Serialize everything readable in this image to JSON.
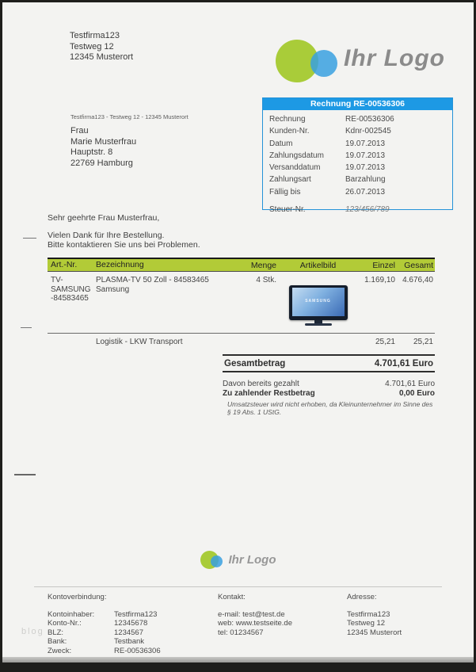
{
  "colors": {
    "accent_blue": "#1d99e4",
    "table_green": "#b2cb37",
    "logo_green": "#a9cc39",
    "logo_blue": "#38a0e0",
    "page_bg": "#f3f3f1"
  },
  "sender_top": {
    "lines": [
      "Testfirma123",
      "Testweg 12",
      "12345 Musterort"
    ]
  },
  "logo": {
    "text": "Ihr Logo"
  },
  "info_box": {
    "title": "Rechnung RE-00536306",
    "rows": [
      {
        "label": "Rechnung",
        "value": "RE-00536306"
      },
      {
        "label": "Kunden-Nr.",
        "value": "Kdnr-002545"
      },
      {
        "label": "Datum",
        "value": "19.07.2013"
      },
      {
        "label": "Zahlungsdatum",
        "value": "19.07.2013"
      },
      {
        "label": "Versanddatum",
        "value": "19.07.2013"
      },
      {
        "label": "Zahlungsart",
        "value": "Barzahlung"
      },
      {
        "label": "Fällig bis",
        "value": "26.07.2013"
      }
    ],
    "tax_label": "Steuer-Nr.",
    "tax_value": "123/456/789"
  },
  "recipient": {
    "return_address": "Testfirma123 - Testweg 12 - 12345 Musterort",
    "lines": [
      "Frau",
      "Marie Musterfrau",
      "Hauptstr. 8",
      "22769 Hamburg"
    ]
  },
  "letter": {
    "salutation": "Sehr geehrte Frau Musterfrau,",
    "body_line1": "Vielen Dank für Ihre Bestellung.",
    "body_line2": "Bitte kontaktieren Sie uns bei Problemen."
  },
  "items_table": {
    "headers": {
      "art_nr": "Art.-Nr.",
      "bezeichnung": "Bezeichnung",
      "menge": "Menge",
      "artikelbild": "Artikelbild",
      "einzel": "Einzel",
      "gesamt": "Gesamt"
    },
    "rows": [
      {
        "art_nr": "TV-SAMSUNG-84583465",
        "bezeichnung": "PLASMA-TV 50 Zoll - 84583465 Samsung",
        "menge": "4 Stk.",
        "image_label": "SAMSUNG",
        "einzel": "1.169,10",
        "gesamt": "4.676,40"
      },
      {
        "art_nr": "",
        "bezeichnung": "Logistik - LKW Transport",
        "menge": "",
        "einzel": "25,21",
        "gesamt": "25,21"
      }
    ]
  },
  "totals": {
    "total_label": "Gesamtbetrag",
    "total_value": "4.701,61 Euro",
    "paid_label": "Davon bereits gezahlt",
    "paid_value": "4.701,61 Euro",
    "due_label": "Zu zahlender Restbetrag",
    "due_value": "0,00 Euro",
    "tax_note": "Umsatzsteuer wird nicht erhoben, da Kleinunternehmer im Sinne des § 19 Abs. 1 UStG."
  },
  "footer": {
    "logo_text": "Ihr Logo",
    "bank": {
      "title": "Kontoverbindung:",
      "rows": [
        {
          "label": "Kontoinhaber:",
          "value": "Testfirma123"
        },
        {
          "label": "Konto-Nr.:",
          "value": "12345678"
        },
        {
          "label": "BLZ:",
          "value": "1234567"
        },
        {
          "label": "Bank:",
          "value": "Testbank"
        },
        {
          "label": "Zweck:",
          "value": "RE-00536306"
        }
      ]
    },
    "contact": {
      "title": "Kontakt:",
      "lines": [
        "e-mail: test@test.de",
        "web: www.testseite.de",
        "tel: 01234567"
      ]
    },
    "address": {
      "title": "Adresse:",
      "lines": [
        "Testfirma123",
        "Testweg 12",
        "12345 Musterort"
      ]
    }
  },
  "watermark": "blog"
}
